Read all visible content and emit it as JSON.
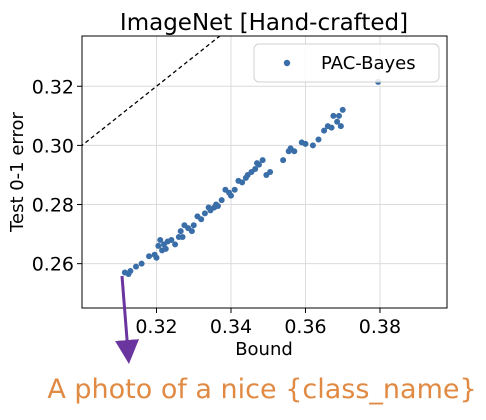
{
  "chart_data": {
    "type": "scatter",
    "title": "ImageNet [Hand-crafted]",
    "xlabel": "Bound",
    "ylabel": "Test 0-1 error",
    "xlim": [
      0.3,
      0.398
    ],
    "ylim": [
      0.245,
      0.337
    ],
    "xticks": [
      0.32,
      0.34,
      0.36,
      0.38
    ],
    "yticks": [
      0.26,
      0.28,
      0.3,
      0.32
    ],
    "xtick_labels": [
      "0.32",
      "0.34",
      "0.36",
      "0.38"
    ],
    "ytick_labels": [
      "0.26",
      "0.28",
      "0.30",
      "0.32"
    ],
    "grid": true,
    "legend_position": "top-right",
    "reference_line": "y = x, dashed black",
    "series": [
      {
        "name": "PAC-Bayes",
        "color": "#3A6EA8",
        "points": [
          [
            0.3115,
            0.257
          ],
          [
            0.3125,
            0.2565
          ],
          [
            0.313,
            0.2575
          ],
          [
            0.3145,
            0.259
          ],
          [
            0.316,
            0.26
          ],
          [
            0.318,
            0.2625
          ],
          [
            0.3195,
            0.263
          ],
          [
            0.32,
            0.262
          ],
          [
            0.3205,
            0.266
          ],
          [
            0.321,
            0.268
          ],
          [
            0.3215,
            0.2645
          ],
          [
            0.322,
            0.2665
          ],
          [
            0.3225,
            0.265
          ],
          [
            0.323,
            0.2675
          ],
          [
            0.324,
            0.268
          ],
          [
            0.325,
            0.2665
          ],
          [
            0.326,
            0.269
          ],
          [
            0.3265,
            0.271
          ],
          [
            0.327,
            0.269
          ],
          [
            0.3275,
            0.273
          ],
          [
            0.3285,
            0.272
          ],
          [
            0.3295,
            0.271
          ],
          [
            0.33,
            0.273
          ],
          [
            0.331,
            0.276
          ],
          [
            0.332,
            0.275
          ],
          [
            0.333,
            0.277
          ],
          [
            0.334,
            0.279
          ],
          [
            0.3345,
            0.278
          ],
          [
            0.3355,
            0.279
          ],
          [
            0.336,
            0.28
          ],
          [
            0.3365,
            0.2795
          ],
          [
            0.3375,
            0.2815
          ],
          [
            0.3385,
            0.285
          ],
          [
            0.3395,
            0.284
          ],
          [
            0.34,
            0.283
          ],
          [
            0.341,
            0.285
          ],
          [
            0.342,
            0.288
          ],
          [
            0.343,
            0.2875
          ],
          [
            0.344,
            0.289
          ],
          [
            0.3445,
            0.29
          ],
          [
            0.3455,
            0.291
          ],
          [
            0.3465,
            0.292
          ],
          [
            0.347,
            0.294
          ],
          [
            0.3475,
            0.2935
          ],
          [
            0.3485,
            0.295
          ],
          [
            0.3495,
            0.29
          ],
          [
            0.3505,
            0.291
          ],
          [
            0.354,
            0.295
          ],
          [
            0.3555,
            0.298
          ],
          [
            0.356,
            0.299
          ],
          [
            0.357,
            0.298
          ],
          [
            0.359,
            0.301
          ],
          [
            0.36,
            0.3005
          ],
          [
            0.362,
            0.3
          ],
          [
            0.3635,
            0.302
          ],
          [
            0.365,
            0.305
          ],
          [
            0.366,
            0.3065
          ],
          [
            0.367,
            0.306
          ],
          [
            0.3675,
            0.31
          ],
          [
            0.3685,
            0.308
          ],
          [
            0.369,
            0.31
          ],
          [
            0.3695,
            0.3065
          ],
          [
            0.37,
            0.312
          ],
          [
            0.3795,
            0.3215
          ]
        ]
      }
    ],
    "annotation": "A photo of a nice {class_name}"
  }
}
